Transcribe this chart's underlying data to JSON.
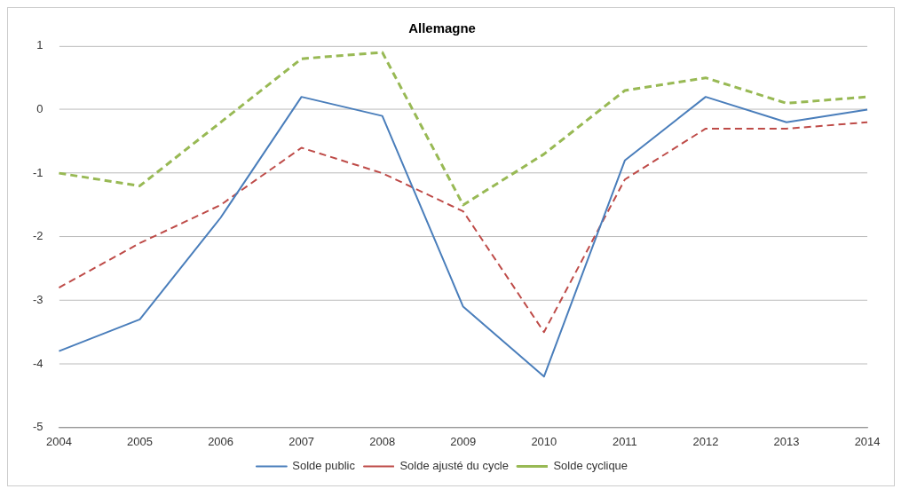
{
  "chart_data": {
    "type": "line",
    "title": "Allemagne",
    "categories": [
      "2004",
      "2005",
      "2006",
      "2007",
      "2008",
      "2009",
      "2010",
      "2011",
      "2012",
      "2013",
      "2014"
    ],
    "series": [
      {
        "name": "Solde public",
        "color": "#4a7ebb",
        "line_style": "solid",
        "values": [
          -3.8,
          -3.3,
          -1.7,
          0.2,
          -0.1,
          -3.1,
          -4.2,
          -0.8,
          0.2,
          -0.2,
          0.0
        ]
      },
      {
        "name": "Solde ajusté du cycle",
        "color": "#be4b48",
        "line_style": "dashed",
        "values": [
          -2.8,
          -2.1,
          -1.5,
          -0.6,
          -1.0,
          -1.6,
          -3.5,
          -1.1,
          -0.3,
          -0.3,
          -0.2
        ]
      },
      {
        "name": "Solde cyclique",
        "color": "#98b954",
        "line_style": "dashed",
        "values": [
          -1.0,
          -1.2,
          -0.2,
          0.8,
          0.9,
          -1.5,
          -0.7,
          0.3,
          0.5,
          0.1,
          0.2
        ]
      }
    ],
    "ylim": [
      -5,
      1
    ],
    "yticks": [
      -5,
      -4,
      -3,
      -2,
      -1,
      0,
      1
    ],
    "grid": "y",
    "legend": "bottom",
    "marker": "none"
  }
}
